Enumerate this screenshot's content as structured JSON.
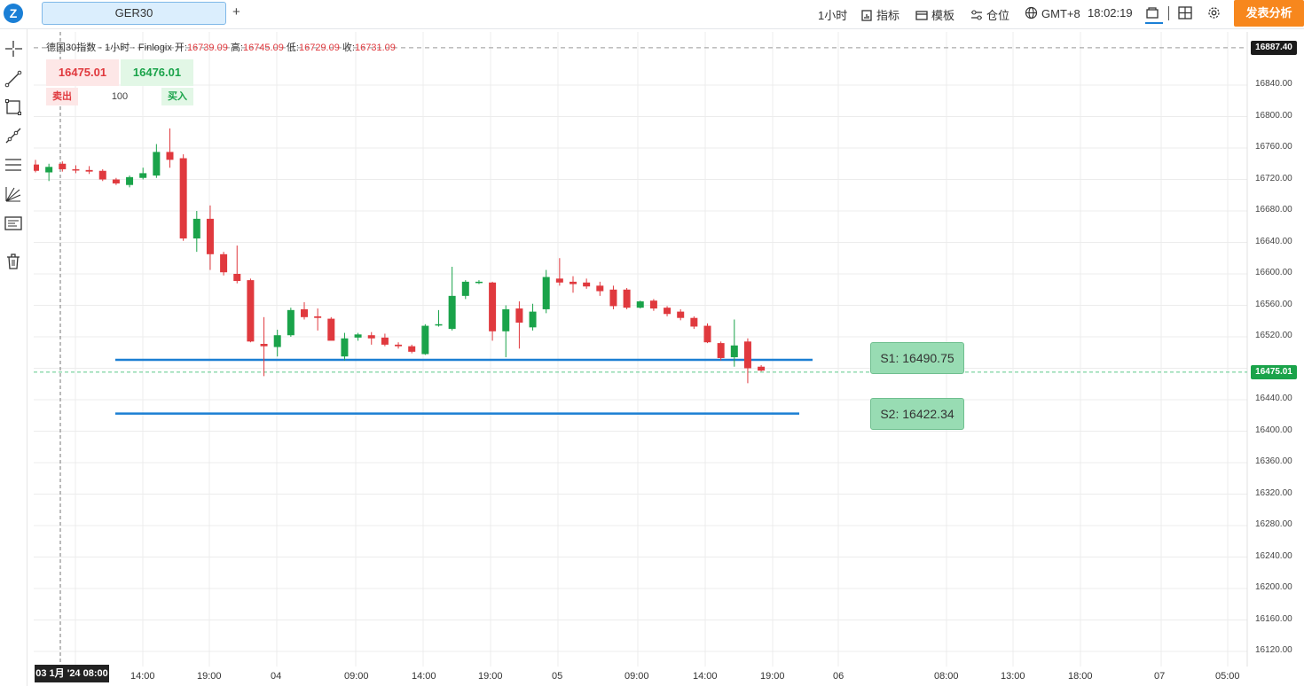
{
  "app": {
    "logo": "Z",
    "tab_label": "GER30",
    "add_tab": "+"
  },
  "toolbar": {
    "interval": "1小时",
    "indicators": "指标",
    "templates": "模板",
    "positions": "仓位",
    "timezone": "GMT+8",
    "time": "18:02:19",
    "analyze_button": "发表分析",
    "icons": [
      "chart-icon",
      "indicator-icon",
      "template-icon",
      "position-icon",
      "globe-icon",
      "layout-icon",
      "grid-icon",
      "gear-icon"
    ]
  },
  "left_tools": [
    "crosshair-icon",
    "trend-line-icon",
    "rectangle-icon",
    "ray-icon",
    "parallel-lines-icon",
    "fib-icon",
    "text-note-icon",
    "trash-icon"
  ],
  "legend": {
    "symbol": "德国30指数 · 1小时 · Finlogix",
    "open_label": "开:",
    "open": "16739.09",
    "high_label": "高:",
    "high": "16745.09",
    "low_label": "低:",
    "low": "16729.09",
    "close_label": "收:",
    "close": "16731.09"
  },
  "trade_panel": {
    "sell_price": "16475.01",
    "buy_price": "16476.01",
    "sell_label": "卖出",
    "quantity": "100",
    "buy_label": "买入"
  },
  "levels": [
    {
      "label": "S1: 16490.75",
      "price": 16490.75
    },
    {
      "label": "S2: 16422.34",
      "price": 16422.34
    }
  ],
  "price_tags": {
    "top": "16887.40",
    "current": "16475.01"
  },
  "crosshair_date": "03 1月 '24 08:00",
  "colors": {
    "up": "#1aa34a",
    "down": "#e0393e",
    "level_line": "#1b7fd3",
    "accent": "#f7871d"
  },
  "chart_data": {
    "type": "candlestick",
    "y_ticks": [
      "16840.00",
      "16800.00",
      "16760.00",
      "16720.00",
      "16680.00",
      "16640.00",
      "16600.00",
      "16560.00",
      "16520.00",
      "16480.00",
      "16440.00",
      "16400.00",
      "16360.00",
      "16320.00",
      "16280.00",
      "16240.00",
      "16200.00",
      "16160.00",
      "16120.00"
    ],
    "x_ticks": [
      "14:00",
      "19:00",
      "04",
      "09:00",
      "14:00",
      "19:00",
      "05",
      "09:00",
      "14:00",
      "19:00",
      "06",
      "08:00",
      "13:00",
      "18:00",
      "07",
      "05:00"
    ],
    "ylim": [
      16105,
      16895
    ],
    "candles": [
      {
        "o": 16739,
        "h": 16745,
        "l": 16729,
        "c": 16731
      },
      {
        "o": 16729,
        "h": 16740,
        "l": 16718,
        "c": 16736
      },
      {
        "o": 16740,
        "h": 16743,
        "l": 16730,
        "c": 16733
      },
      {
        "o": 16733,
        "h": 16738,
        "l": 16728,
        "c": 16732
      },
      {
        "o": 16732,
        "h": 16737,
        "l": 16727,
        "c": 16730
      },
      {
        "o": 16731,
        "h": 16733,
        "l": 16718,
        "c": 16720
      },
      {
        "o": 16720,
        "h": 16722,
        "l": 16713,
        "c": 16715
      },
      {
        "o": 16713,
        "h": 16725,
        "l": 16710,
        "c": 16723
      },
      {
        "o": 16722,
        "h": 16735,
        "l": 16720,
        "c": 16728
      },
      {
        "o": 16725,
        "h": 16765,
        "l": 16722,
        "c": 16755
      },
      {
        "o": 16755,
        "h": 16785,
        "l": 16735,
        "c": 16745
      },
      {
        "o": 16747,
        "h": 16752,
        "l": 16642,
        "c": 16645
      },
      {
        "o": 16645,
        "h": 16680,
        "l": 16628,
        "c": 16670
      },
      {
        "o": 16670,
        "h": 16687,
        "l": 16605,
        "c": 16625
      },
      {
        "o": 16625,
        "h": 16628,
        "l": 16598,
        "c": 16602
      },
      {
        "o": 16600,
        "h": 16636,
        "l": 16588,
        "c": 16591
      },
      {
        "o": 16592,
        "h": 16594,
        "l": 16513,
        "c": 16514
      },
      {
        "o": 16511,
        "h": 16545,
        "l": 16470,
        "c": 16508
      },
      {
        "o": 16507,
        "h": 16529,
        "l": 16495,
        "c": 16522
      },
      {
        "o": 16522,
        "h": 16557,
        "l": 16520,
        "c": 16554
      },
      {
        "o": 16555,
        "h": 16564,
        "l": 16542,
        "c": 16545
      },
      {
        "o": 16546,
        "h": 16556,
        "l": 16528,
        "c": 16544
      },
      {
        "o": 16543,
        "h": 16545,
        "l": 16516,
        "c": 16515
      },
      {
        "o": 16495,
        "h": 16525,
        "l": 16490,
        "c": 16518
      },
      {
        "o": 16519,
        "h": 16525,
        "l": 16515,
        "c": 16523
      },
      {
        "o": 16522,
        "h": 16526,
        "l": 16510,
        "c": 16518
      },
      {
        "o": 16519,
        "h": 16524,
        "l": 16508,
        "c": 16510
      },
      {
        "o": 16510,
        "h": 16513,
        "l": 16505,
        "c": 16508
      },
      {
        "o": 16508,
        "h": 16510,
        "l": 16499,
        "c": 16501
      },
      {
        "o": 16498,
        "h": 16536,
        "l": 16497,
        "c": 16534
      },
      {
        "o": 16535,
        "h": 16554,
        "l": 16533,
        "c": 16536
      },
      {
        "o": 16530,
        "h": 16609,
        "l": 16528,
        "c": 16572
      },
      {
        "o": 16572,
        "h": 16592,
        "l": 16568,
        "c": 16590
      },
      {
        "o": 16589,
        "h": 16592,
        "l": 16587,
        "c": 16590
      },
      {
        "o": 16589,
        "h": 16590,
        "l": 16515,
        "c": 16527
      },
      {
        "o": 16527,
        "h": 16560,
        "l": 16494,
        "c": 16555
      },
      {
        "o": 16556,
        "h": 16565,
        "l": 16505,
        "c": 16538
      },
      {
        "o": 16532,
        "h": 16562,
        "l": 16528,
        "c": 16552
      },
      {
        "o": 16555,
        "h": 16605,
        "l": 16550,
        "c": 16596
      },
      {
        "o": 16594,
        "h": 16620,
        "l": 16585,
        "c": 16589
      },
      {
        "o": 16590,
        "h": 16597,
        "l": 16576,
        "c": 16587
      },
      {
        "o": 16589,
        "h": 16594,
        "l": 16581,
        "c": 16584
      },
      {
        "o": 16585,
        "h": 16590,
        "l": 16572,
        "c": 16578
      },
      {
        "o": 16580,
        "h": 16585,
        "l": 16555,
        "c": 16559
      },
      {
        "o": 16580,
        "h": 16582,
        "l": 16555,
        "c": 16557
      },
      {
        "o": 16557,
        "h": 16566,
        "l": 16556,
        "c": 16565
      },
      {
        "o": 16566,
        "h": 16568,
        "l": 16553,
        "c": 16556
      },
      {
        "o": 16557,
        "h": 16559,
        "l": 16546,
        "c": 16549
      },
      {
        "o": 16552,
        "h": 16555,
        "l": 16541,
        "c": 16544
      },
      {
        "o": 16544,
        "h": 16546,
        "l": 16530,
        "c": 16533
      },
      {
        "o": 16534,
        "h": 16537,
        "l": 16512,
        "c": 16513
      },
      {
        "o": 16512,
        "h": 16514,
        "l": 16490,
        "c": 16493
      },
      {
        "o": 16494,
        "h": 16542,
        "l": 16482,
        "c": 16509
      },
      {
        "o": 16514,
        "h": 16518,
        "l": 16461,
        "c": 16480
      },
      {
        "o": 16482,
        "h": 16484,
        "l": 16476,
        "c": 16477
      }
    ],
    "support_levels": [
      16490.75,
      16422.34
    ]
  }
}
